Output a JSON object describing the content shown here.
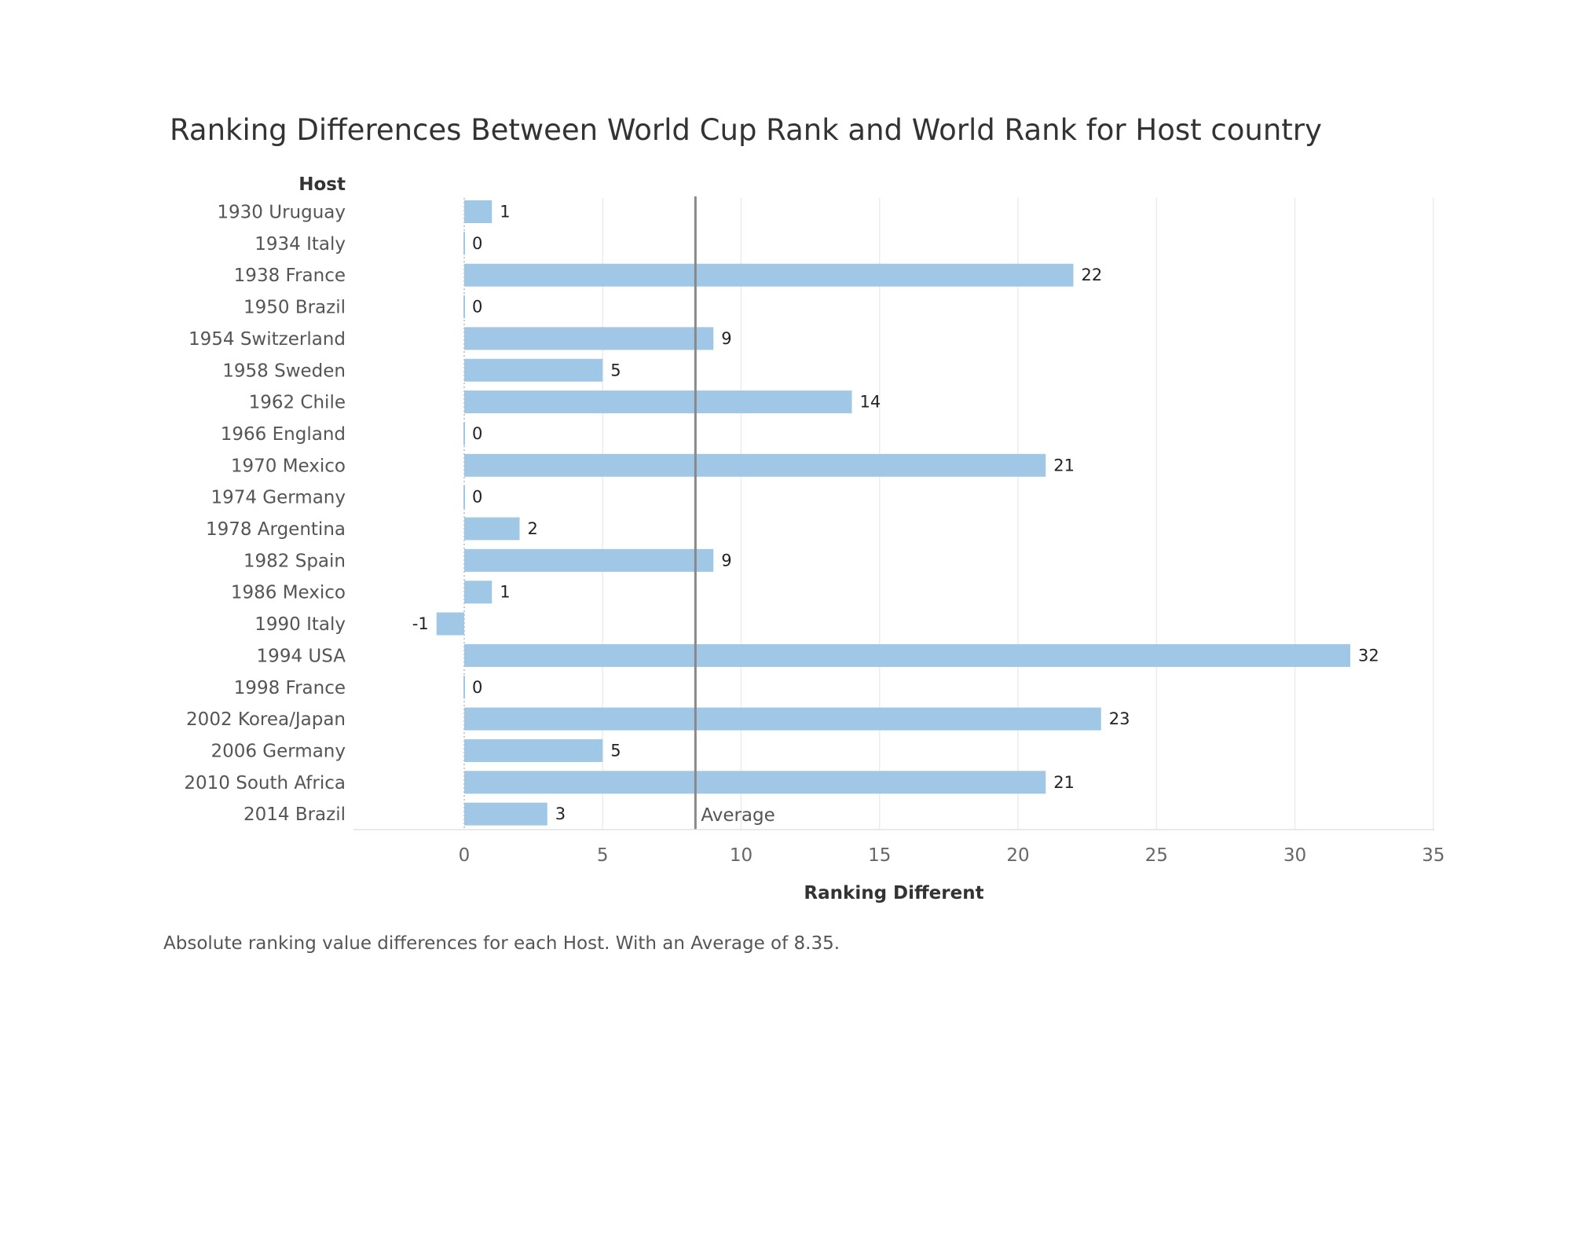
{
  "chart_data": {
    "type": "bar",
    "orientation": "horizontal",
    "title": "Ranking Differences Between World Cup Rank and World Rank for Host country",
    "category_header": "Host",
    "xlabel": "Ranking Different",
    "caption": "Absolute ranking value differences for each Host. With an Average of 8.35.",
    "categories": [
      "1930 Uruguay",
      "1934 Italy",
      "1938 France",
      "1950 Brazil",
      "1954 Switzerland",
      "1958 Sweden",
      "1962 Chile",
      "1966 England",
      "1970 Mexico",
      "1974 Germany",
      "1978 Argentina",
      "1982 Spain",
      "1986 Mexico",
      "1990 Italy",
      "1994 USA",
      "1998 France",
      "2002 Korea/Japan",
      "2006 Germany",
      "2010 South Africa",
      "2014 Brazil"
    ],
    "values": [
      1,
      0,
      22,
      0,
      9,
      5,
      14,
      0,
      21,
      0,
      2,
      9,
      1,
      -1,
      32,
      0,
      23,
      5,
      21,
      3
    ],
    "xlim": [
      -4,
      35
    ],
    "xticks": [
      0,
      5,
      10,
      15,
      20,
      25,
      30,
      35
    ],
    "grid": true,
    "reference_line": {
      "label": "Average",
      "value": 8.35
    },
    "bar_color": "#a0c8e6",
    "reference_line_color": "#888888"
  }
}
